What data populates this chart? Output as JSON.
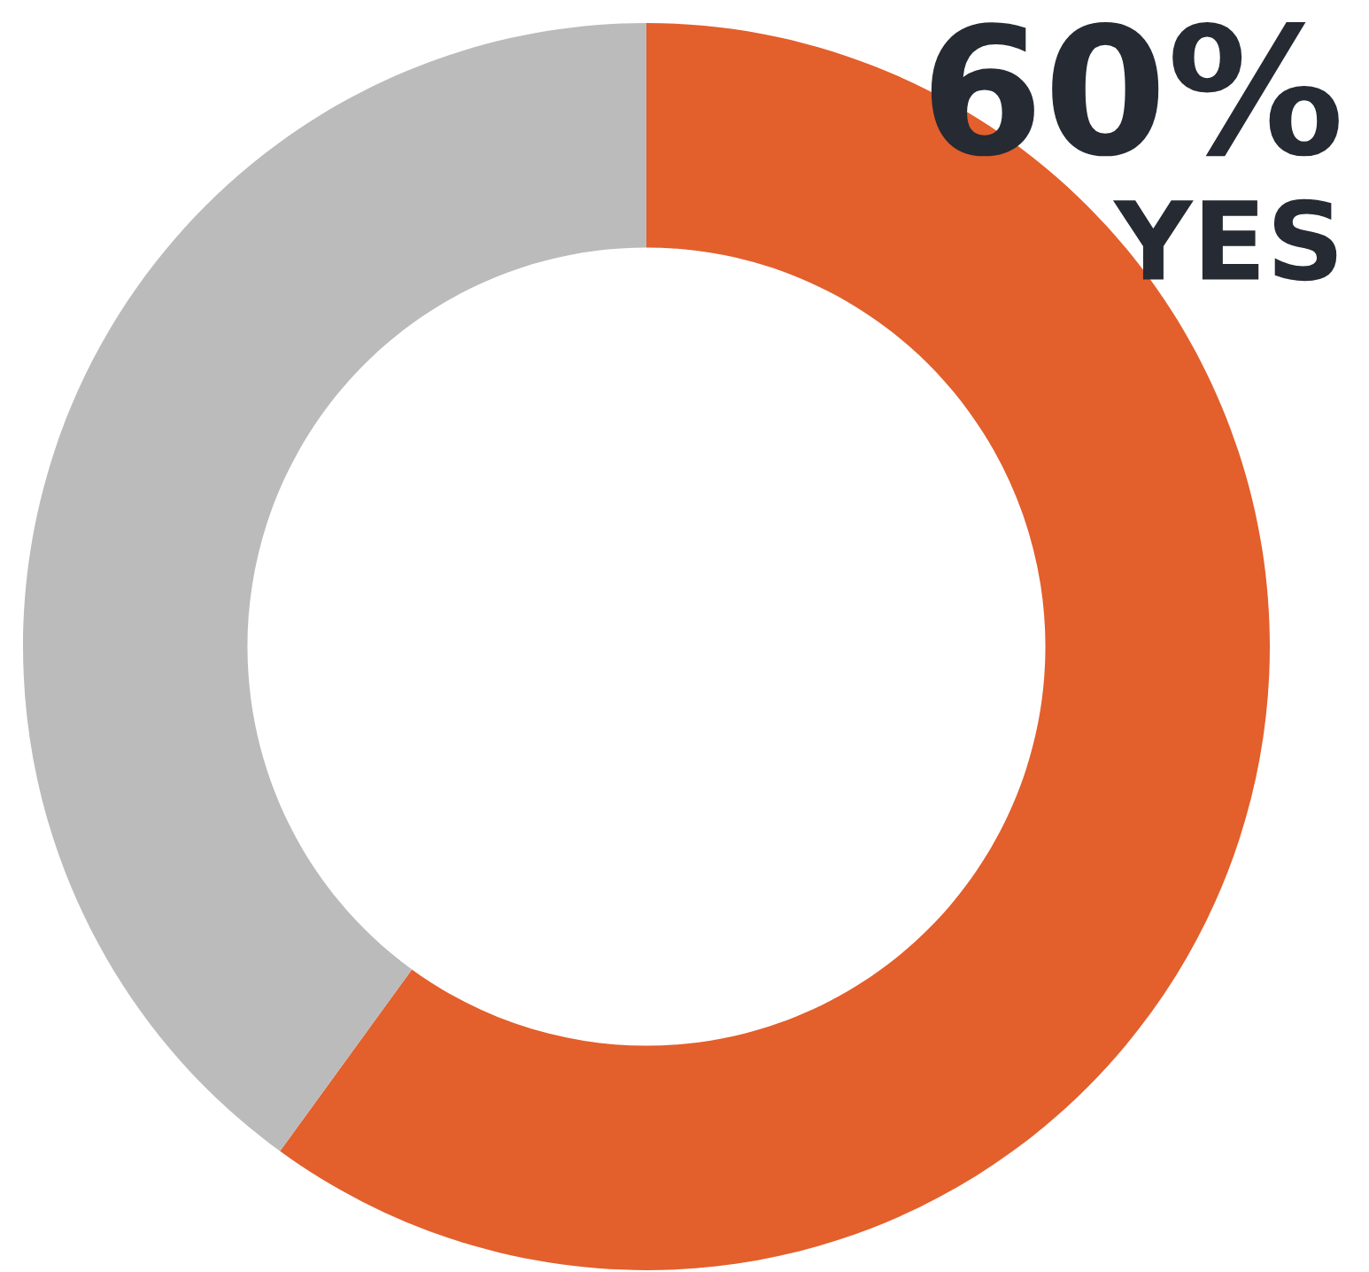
{
  "chart_data": {
    "type": "donut",
    "categories": [
      "YES",
      null
    ],
    "values": [
      60,
      40
    ],
    "colors": [
      "#e35f2c",
      "#bbbbbb"
    ],
    "value_labels": [
      "60%",
      null
    ]
  }
}
